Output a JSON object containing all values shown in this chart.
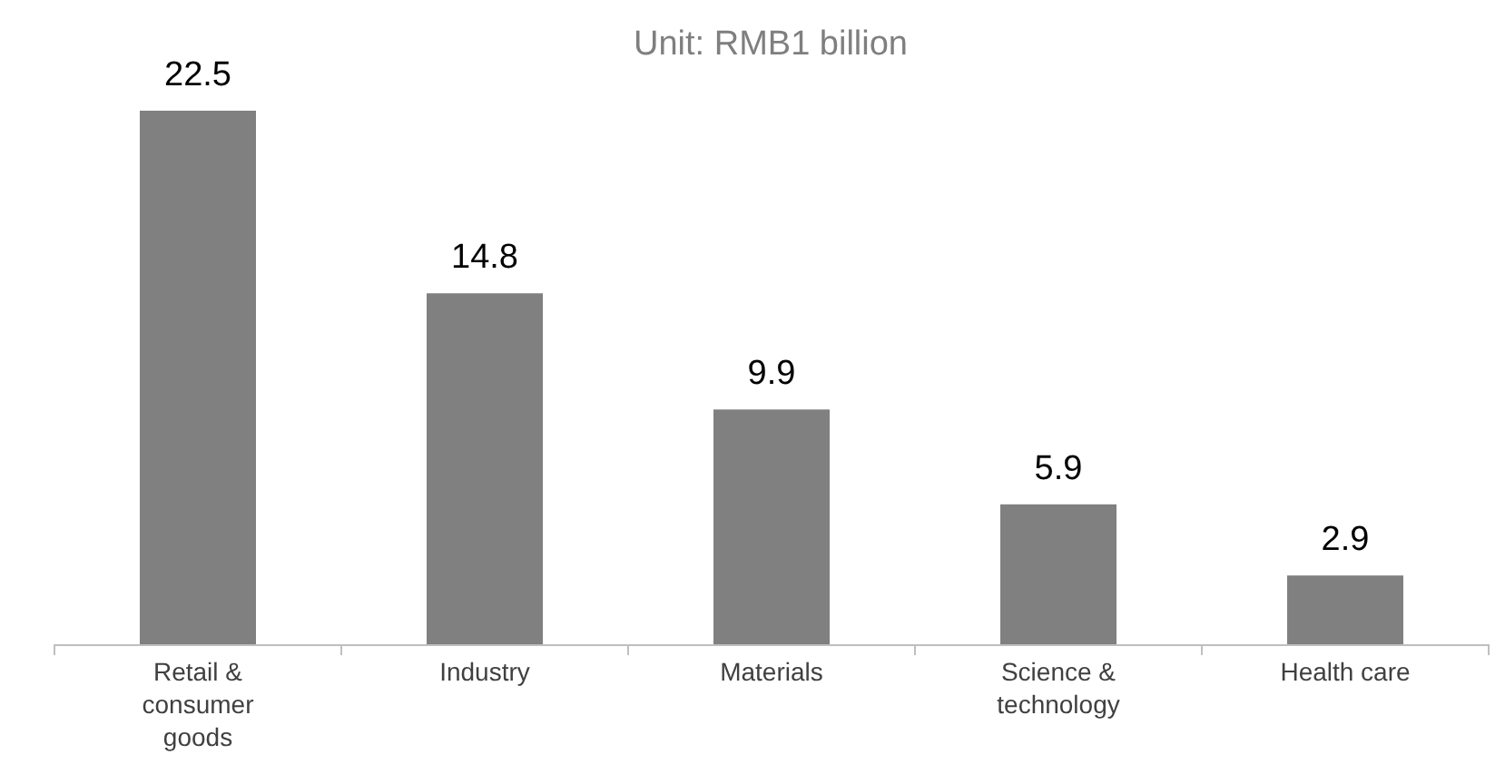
{
  "chart_data": {
    "type": "bar",
    "title": "Unit: RMB1 billion",
    "categories": [
      "Retail & consumer goods",
      "Industry",
      "Materials",
      "Science & technology",
      "Health care"
    ],
    "values": [
      22.5,
      14.8,
      9.9,
      5.9,
      2.9
    ],
    "color": "#808080",
    "data_labels": true
  }
}
